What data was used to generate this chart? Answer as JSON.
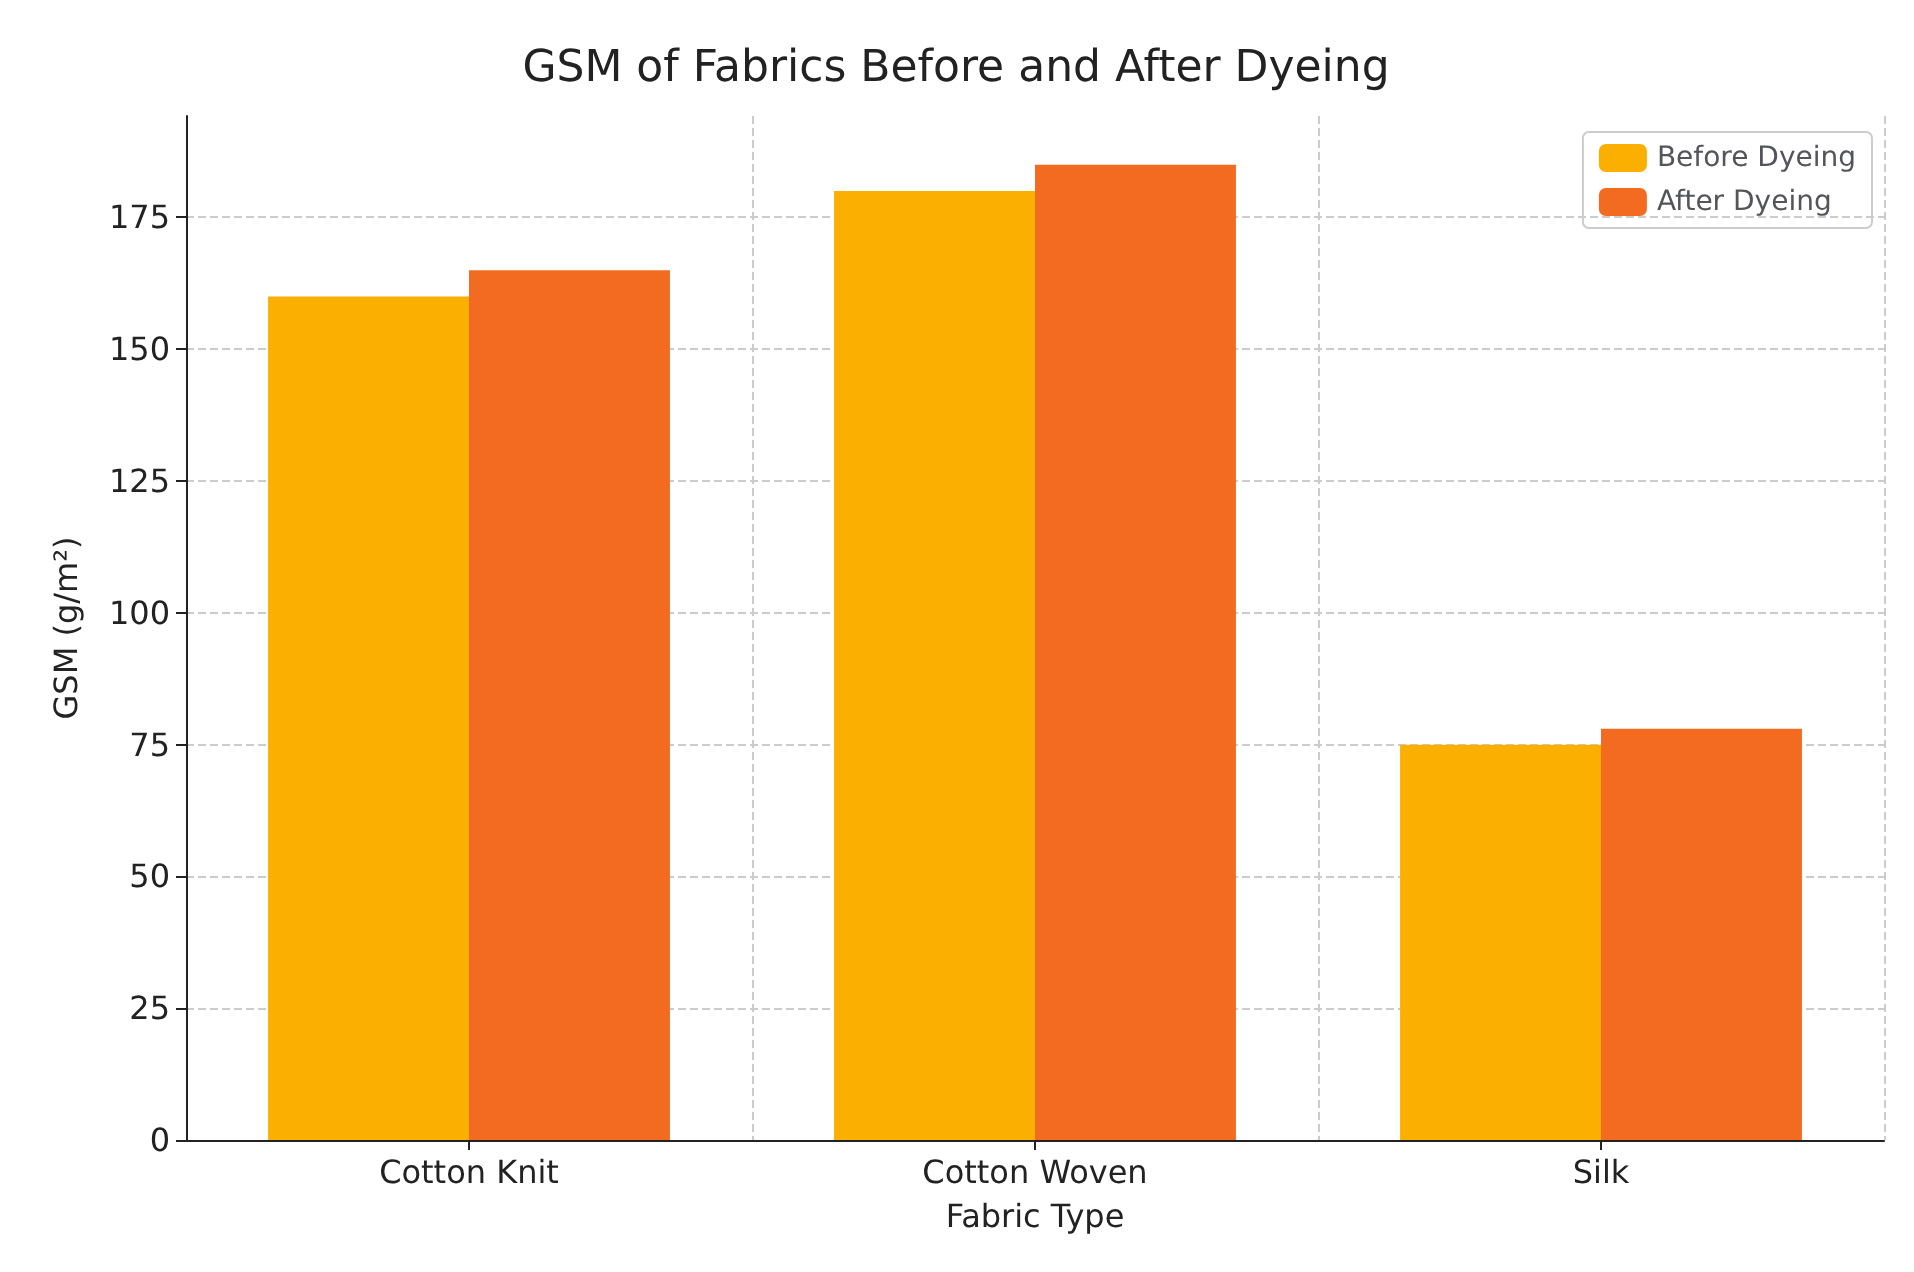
{
  "chart_data": {
    "type": "bar",
    "title": "GSM of Fabrics Before and After Dyeing",
    "xlabel": "Fabric Type",
    "ylabel": "GSM (g/m²)",
    "categories": [
      "Cotton Knit",
      "Cotton Woven",
      "Silk"
    ],
    "series": [
      {
        "name": "Before Dyeing",
        "color": "#fbaf00",
        "values": [
          160,
          180,
          75
        ]
      },
      {
        "name": "After Dyeing",
        "color": "#f26b21",
        "values": [
          165,
          185,
          78
        ]
      }
    ],
    "ylim": [
      0,
      194.25
    ],
    "yticks": [
      0,
      25,
      50,
      75,
      100,
      125,
      150,
      175
    ],
    "grid": true,
    "legend": "top right"
  }
}
